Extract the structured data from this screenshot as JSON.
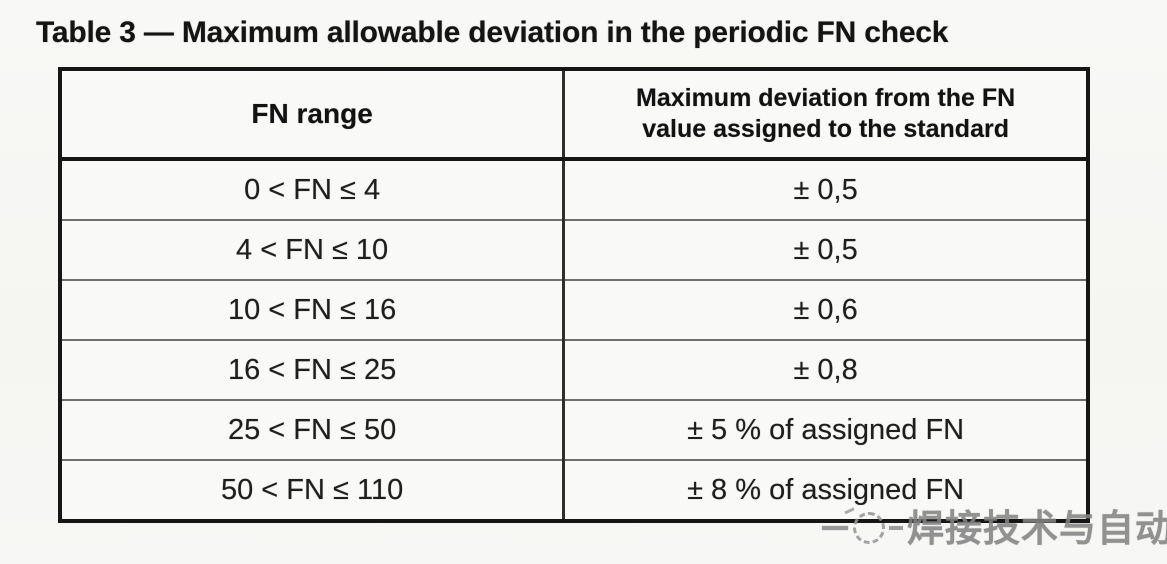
{
  "page": {
    "title": "Table 3 — Maximum allowable deviation in the periodic FN check"
  },
  "table": {
    "header": {
      "col1": "FN range",
      "col2_line1": "Maximum deviation from the FN",
      "col2_line2": "value assigned to the standard"
    },
    "rows": [
      {
        "range": "0 < FN ≤ 4",
        "deviation": "± 0,5"
      },
      {
        "range": "4 < FN ≤ 10",
        "deviation": "± 0,5"
      },
      {
        "range": "10 < FN ≤ 16",
        "deviation": "± 0,6"
      },
      {
        "range": "16 < FN ≤ 25",
        "deviation": "± 0,8"
      },
      {
        "range": "25 < FN ≤ 50",
        "deviation": "± 5 % of assigned FN"
      },
      {
        "range": "50 < FN ≤ 110",
        "deviation": "± 8 % of assigned FN"
      }
    ]
  },
  "watermark": {
    "text": "焊接技术与自动化",
    "icon": "dashed-circle-logo",
    "color": "#848484"
  },
  "colors": {
    "background": "#f7f7f5",
    "text": "#1b1b1b",
    "outer_border": "#161616",
    "row_divider": "#6f6f6f",
    "column_divider": "#2e2e2e"
  }
}
